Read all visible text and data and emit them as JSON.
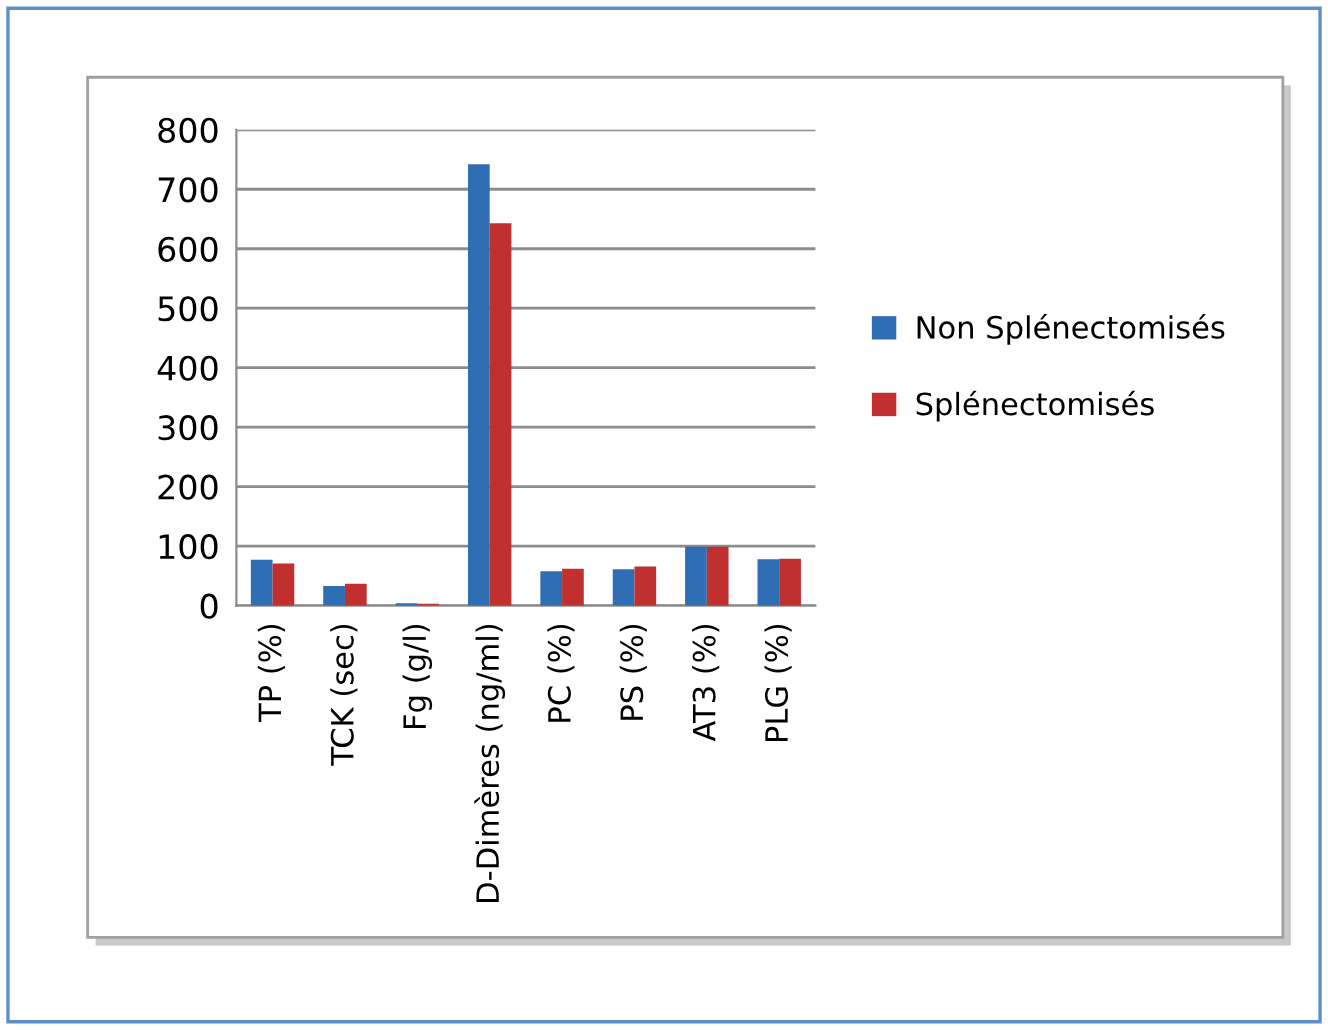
{
  "chart_data": {
    "type": "bar",
    "categories": [
      "TP (%)",
      "TCK (sec)",
      "Fg (g/l)",
      "D-Dimères (ng/ml)",
      "PC (%)",
      "PS (%)",
      "AT3 (%)",
      "PLG (%)"
    ],
    "series": [
      {
        "name": "Non Splénectomisés",
        "color": "#2f6db5",
        "values": [
          77,
          33,
          4,
          742,
          58,
          61,
          99,
          78
        ]
      },
      {
        "name": "Splénectomisés",
        "color": "#c0302e",
        "values": [
          71,
          37,
          3,
          643,
          62,
          66,
          99,
          79
        ]
      }
    ],
    "ylim": [
      0,
      800
    ],
    "yticks": [
      0,
      100,
      200,
      300,
      400,
      500,
      600,
      700,
      800
    ],
    "grid": "y",
    "legend": "right"
  }
}
